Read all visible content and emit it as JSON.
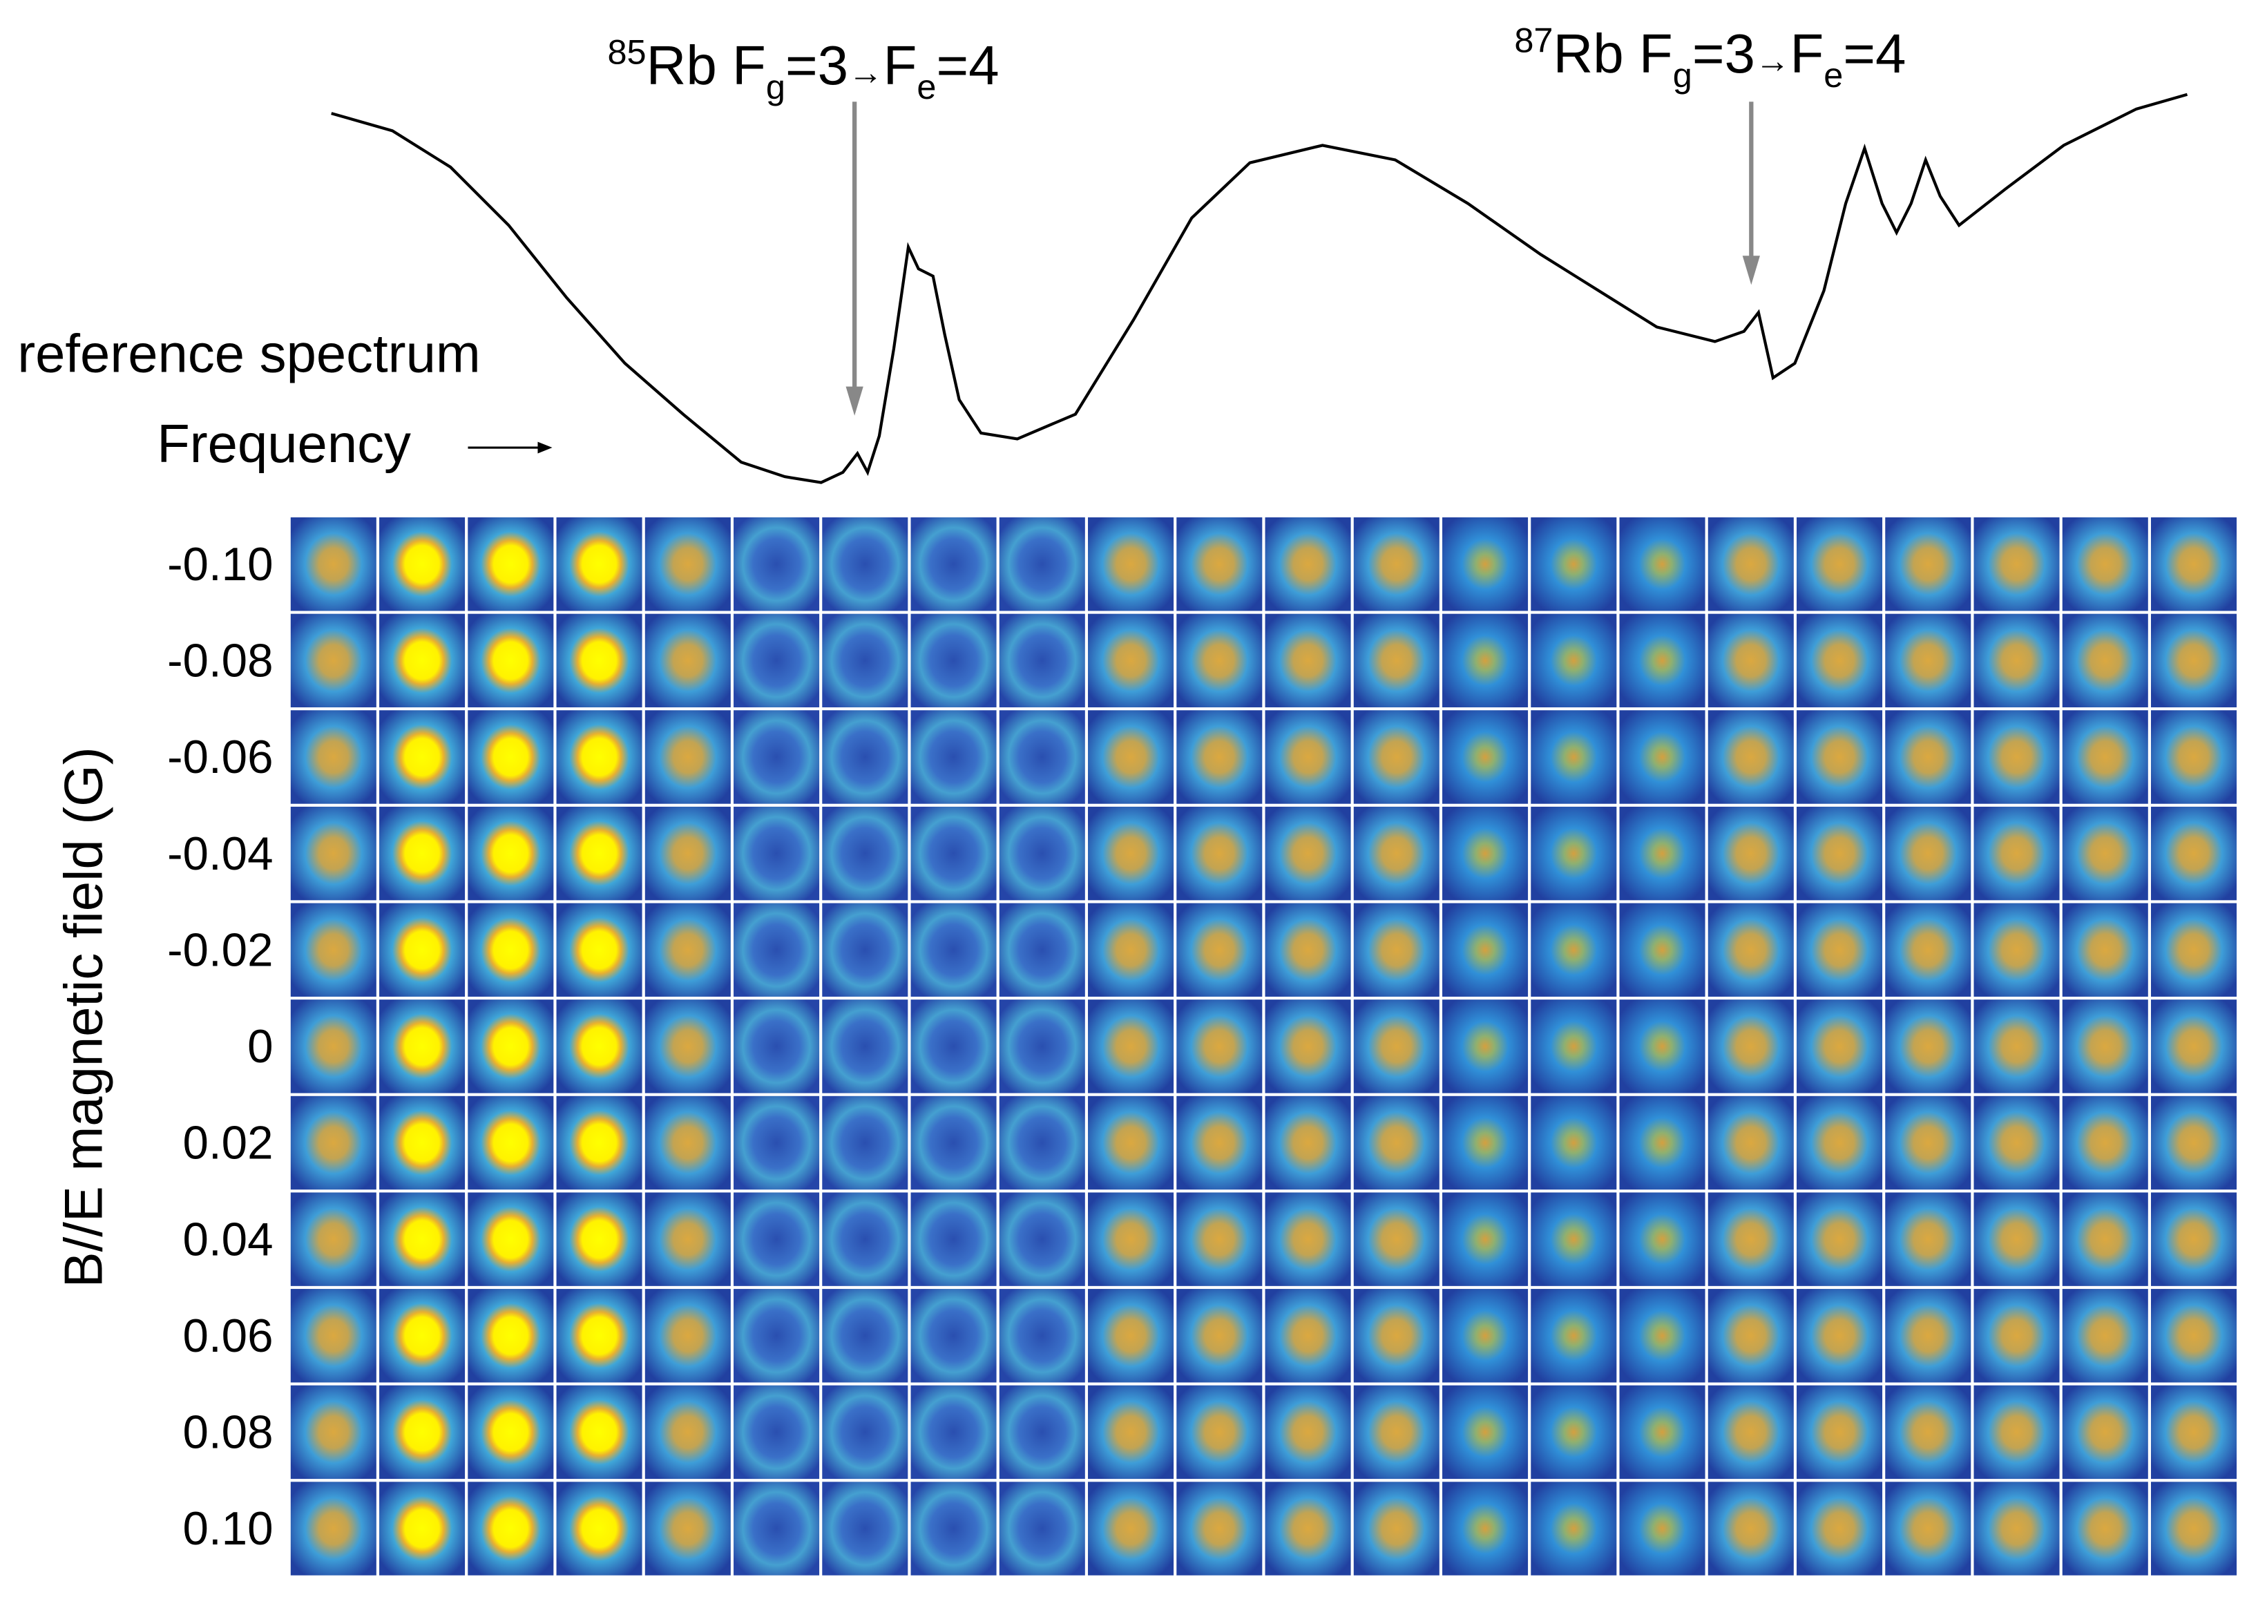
{
  "annotations": [
    {
      "mass": "85",
      "element": "Rb F",
      "ground_sub": "g",
      "ground_value": "=3",
      "arrow": "→",
      "excited": "F",
      "excited_sub": "e",
      "excited_value": "=4"
    },
    {
      "mass": "87",
      "element": "Rb F",
      "ground_sub": "g",
      "ground_value": "=3",
      "arrow": "→",
      "excited": "F",
      "excited_sub": "e",
      "excited_value": "=4"
    }
  ],
  "spectrum_label": "reference spectrum",
  "frequency_label": "Frequency",
  "y_axis_label": "B//E magnetic field (G)",
  "row_labels": [
    "-0.10",
    "-0.08",
    "-0.06",
    "-0.04",
    "-0.02",
    "0",
    "0.02",
    "0.04",
    "0.06",
    "0.08",
    "0.10"
  ]
}
